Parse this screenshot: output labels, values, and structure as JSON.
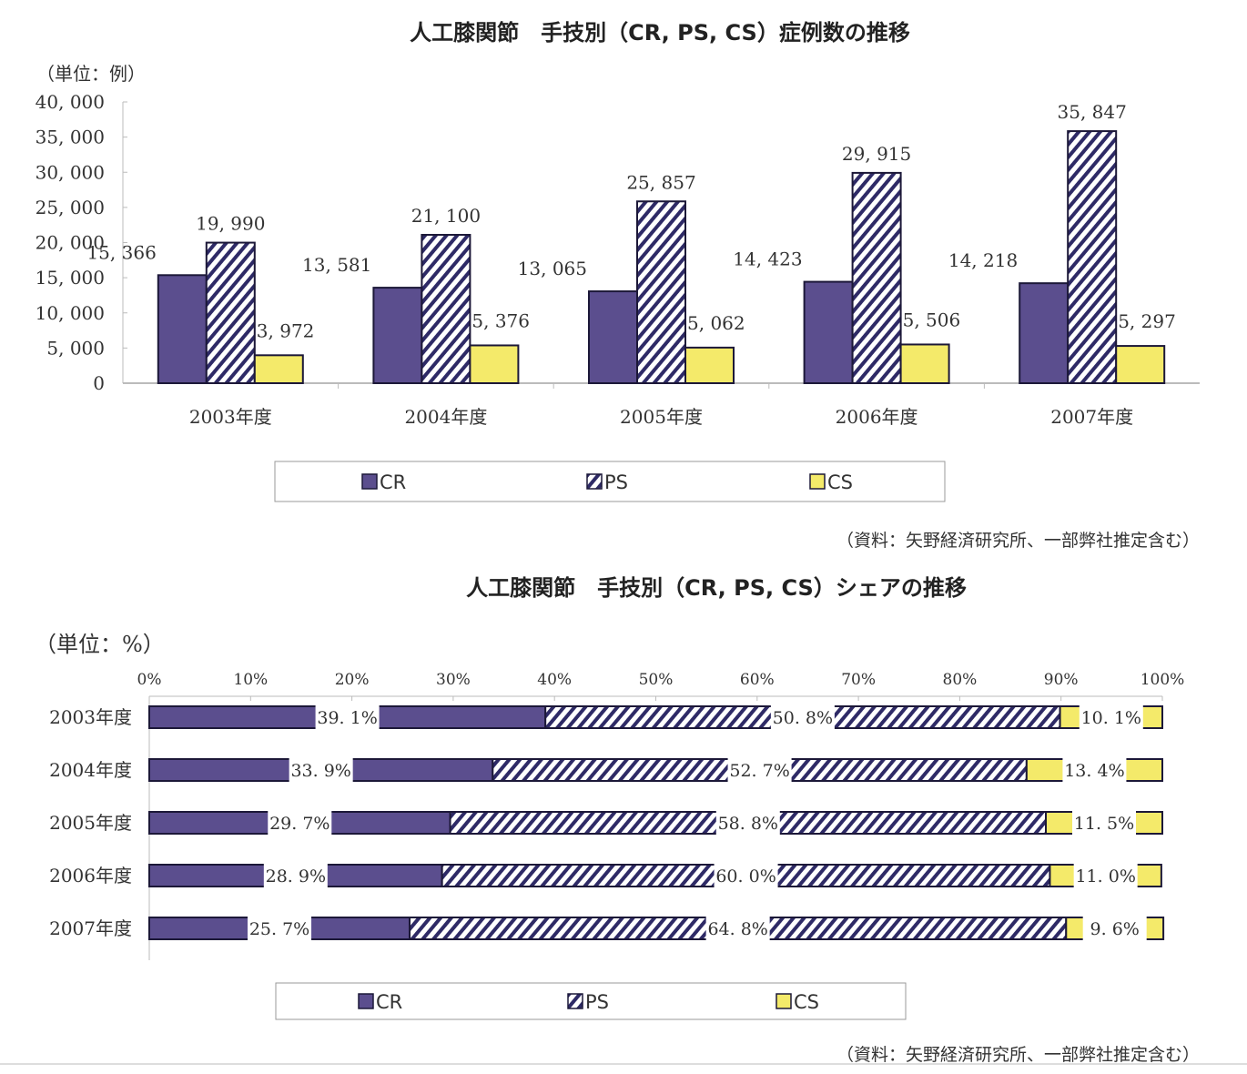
{
  "colors": {
    "CR": "#5b4e8e",
    "PS_stripe": "#2e2a66",
    "CS": "#f4ea6a",
    "outline": "#1c1838"
  },
  "chart_data": [
    {
      "type": "bar",
      "title": "人工膝関節　手技別（CR, PS, CS）症例数の推移",
      "unit_label": "（単位：例）",
      "categories": [
        "2003年度",
        "2004年度",
        "2005年度",
        "2006年度",
        "2007年度"
      ],
      "series": [
        {
          "name": "CR",
          "values": [
            15366,
            13581,
            13065,
            14423,
            14218
          ],
          "labels": [
            "15, 366",
            "13, 581",
            "13, 065",
            "14, 423",
            "14, 218"
          ]
        },
        {
          "name": "PS",
          "values": [
            19990,
            21100,
            25857,
            29915,
            35847
          ],
          "labels": [
            "19, 990",
            "21, 100",
            "25, 857",
            "29, 915",
            "35, 847"
          ]
        },
        {
          "name": "CS",
          "values": [
            3972,
            5376,
            5062,
            5506,
            5297
          ],
          "labels": [
            "3, 972",
            "5, 376",
            "5, 062",
            "5, 506",
            "5, 297"
          ]
        }
      ],
      "ylim": [
        0,
        40000
      ],
      "yticks": [
        0,
        5000,
        10000,
        15000,
        20000,
        25000,
        30000,
        35000,
        40000
      ],
      "ytick_labels": [
        "0",
        "5, 000",
        "10, 000",
        "15, 000",
        "20, 000",
        "25, 000",
        "30, 000",
        "35, 000",
        "40, 000"
      ],
      "legend": [
        "CR",
        "PS",
        "CS"
      ],
      "legend_position": "bottom",
      "source": "（資料：矢野経済研究所、一部弊社推定含む）"
    },
    {
      "type": "bar",
      "orientation": "horizontal-stacked-100",
      "title": "人工膝関節　手技別（CR, PS, CS）シェアの推移",
      "unit_label": "（単位：%）",
      "categories": [
        "2003年度",
        "2004年度",
        "2005年度",
        "2006年度",
        "2007年度"
      ],
      "series": [
        {
          "name": "CR",
          "values": [
            39.1,
            33.9,
            29.7,
            28.9,
            25.7
          ],
          "labels": [
            "39. 1%",
            "33. 9%",
            "29. 7%",
            "28. 9%",
            "25. 7%"
          ]
        },
        {
          "name": "PS",
          "values": [
            50.8,
            52.7,
            58.8,
            60.0,
            64.8
          ],
          "labels": [
            "50. 8%",
            "52. 7%",
            "58. 8%",
            "60. 0%",
            "64. 8%"
          ]
        },
        {
          "name": "CS",
          "values": [
            10.1,
            13.4,
            11.5,
            11.0,
            9.6
          ],
          "labels": [
            "10. 1%",
            "13. 4%",
            "11. 5%",
            "11. 0%",
            "9. 6%"
          ]
        }
      ],
      "xlim": [
        0,
        100
      ],
      "xtick_labels": [
        "0%",
        "10%",
        "20%",
        "30%",
        "40%",
        "50%",
        "60%",
        "70%",
        "80%",
        "90%",
        "100%"
      ],
      "legend": [
        "CR",
        "PS",
        "CS"
      ],
      "legend_position": "bottom",
      "source": "（資料：矢野経済研究所、一部弊社推定含む）"
    }
  ]
}
